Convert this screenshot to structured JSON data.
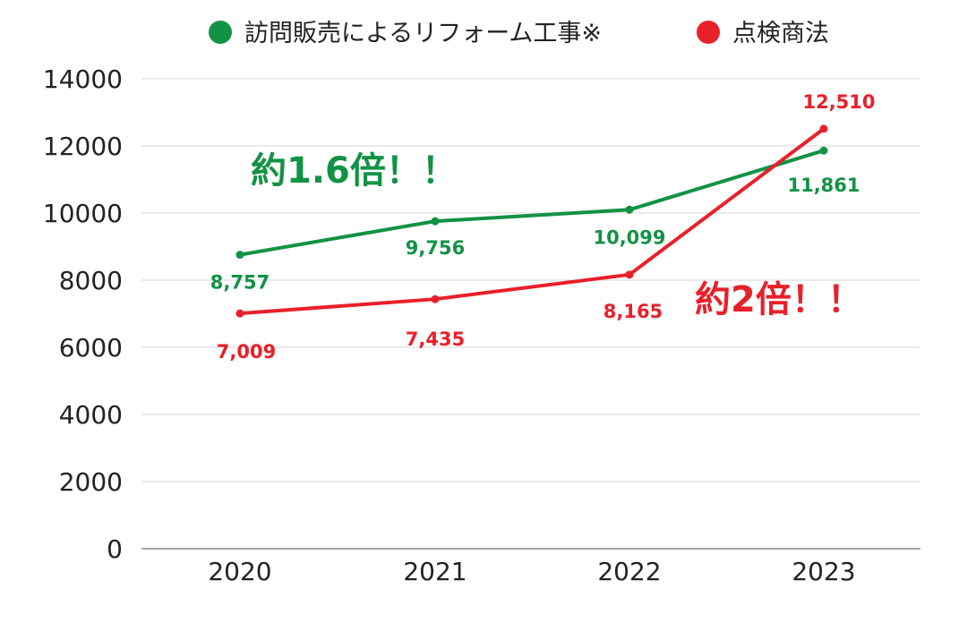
{
  "chart_data": {
    "type": "line",
    "categories": [
      "2020",
      "2021",
      "2022",
      "2023"
    ],
    "series": [
      {
        "name": "訪問販売によるリフォーム工事※",
        "color": "#129245",
        "values": [
          8757,
          9756,
          10099,
          11861
        ],
        "labels": [
          "8,757",
          "9,756",
          "10,099",
          "11,861"
        ]
      },
      {
        "name": "点検商法",
        "color": "#E8202A",
        "values": [
          7009,
          7435,
          8165,
          12510
        ],
        "labels": [
          "7,009",
          "7,435",
          "8,165",
          "12,510"
        ]
      }
    ],
    "yticks": [
      "0",
      "2000",
      "4000",
      "6000",
      "8000",
      "10000",
      "12000",
      "14000"
    ],
    "ylim": [
      0,
      14000
    ],
    "grid": true,
    "legend": "top",
    "annotations": [
      {
        "text": "約1.6倍！！",
        "color": "#129245"
      },
      {
        "text": "約2倍！！",
        "color": "#E8202A"
      }
    ]
  }
}
